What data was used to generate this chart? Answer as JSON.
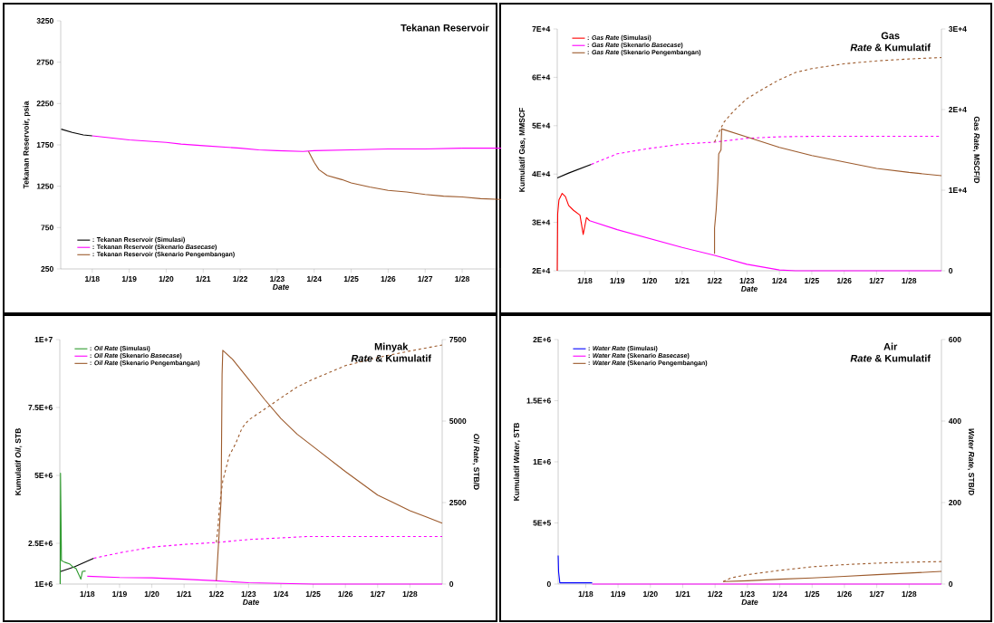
{
  "chart_data": [
    {
      "type": "line",
      "title": "Tekanan Reservoir",
      "xlabel": "*Date*",
      "ylabel": "Tekanan Reservoir, psia",
      "legend": "bottom left",
      "xlim": [
        "2017-02-24",
        "2029-01-20"
      ],
      "xticks": [
        {
          "value": "2018-01",
          "label": "1/18"
        },
        {
          "value": "2019-01",
          "label": "1/19"
        },
        {
          "value": "2020-01",
          "label": "1/20"
        },
        {
          "value": "2021-01",
          "label": "1/21"
        },
        {
          "value": "2022-01",
          "label": "1/22"
        },
        {
          "value": "2023-01",
          "label": "1/23"
        },
        {
          "value": "2024-01",
          "label": "1/24"
        },
        {
          "value": "2025-01",
          "label": "1/25"
        },
        {
          "value": "2026-01",
          "label": "1/26"
        },
        {
          "value": "2027-01",
          "label": "1/27"
        },
        {
          "value": "2028-01",
          "label": "1/28"
        }
      ],
      "ylim": [
        250,
        3250
      ],
      "yticks": [
        250,
        750,
        1250,
        1750,
        2250,
        2750,
        3250
      ],
      "series": [
        {
          "name": ": Tekanan Reservoir (Simulasi)",
          "color": "#000000",
          "line_style": "solid",
          "x": [
            "2017-03-01",
            "2017-06-18",
            "2017-10-05",
            "2018-01-01"
          ],
          "values": [
            1940,
            1900,
            1870,
            1860
          ]
        },
        {
          "name": ": Tekanan Reservoir (Skenario *Basecase*)",
          "color": "#ff00ff",
          "line_style": "solid",
          "x": [
            "2018-01-01",
            "2019-01-01",
            "2020-01-01",
            "2020-05-27",
            "2021-01-01",
            "2022-01-01",
            "2022-07-02",
            "2023-01-01",
            "2023-09-13",
            "2024-01-01",
            "2025-01-01",
            "2026-01-01",
            "2027-01-01",
            "2028-01-01",
            "2029-01-20"
          ],
          "values": [
            1860,
            1810,
            1780,
            1760,
            1740,
            1710,
            1690,
            1680,
            1670,
            1680,
            1690,
            1700,
            1700,
            1710,
            1710
          ]
        },
        {
          "name": ": Tekanan Reservoir (Skenario Pengembangan)",
          "color": "#9c5a2c",
          "line_style": "solid",
          "x": [
            "2023-11-06",
            "2024-01-01",
            "2024-02-17",
            "2024-05-08",
            "2024-10-01",
            "2025-01-01",
            "2025-07-02",
            "2026-01-01",
            "2026-07-02",
            "2027-01-01",
            "2027-07-02",
            "2028-01-01",
            "2028-07-02",
            "2029-01-20"
          ],
          "values": [
            1670,
            1540,
            1450,
            1380,
            1330,
            1290,
            1240,
            1200,
            1180,
            1150,
            1130,
            1120,
            1100,
            1090
          ]
        }
      ]
    },
    {
      "type": "line",
      "title": "Gas",
      "subtitle": "*Rate* & Kumulatif",
      "xlabel": "*Date*",
      "ylabel": "Kumulatif Gas, MMSCF",
      "y2label": "Gas *Rate*, MSCF/D",
      "legend": "top left",
      "xlim": [
        "2017-02-24",
        "2029-01-01"
      ],
      "xticks": [
        {
          "value": "2018-01",
          "label": "1/18"
        },
        {
          "value": "2019-01",
          "label": "1/19"
        },
        {
          "value": "2020-01",
          "label": "1/20"
        },
        {
          "value": "2021-01",
          "label": "1/21"
        },
        {
          "value": "2022-01",
          "label": "1/22"
        },
        {
          "value": "2023-01",
          "label": "1/23"
        },
        {
          "value": "2024-01",
          "label": "1/24"
        },
        {
          "value": "2025-01",
          "label": "1/25"
        },
        {
          "value": "2026-01",
          "label": "1/26"
        },
        {
          "value": "2027-01",
          "label": "1/27"
        },
        {
          "value": "2028-01",
          "label": "1/28"
        }
      ],
      "ylim": [
        20000,
        70000
      ],
      "yticks": [
        {
          "value": 20000,
          "label": "2E+4"
        },
        {
          "value": 30000,
          "label": "3E+4"
        },
        {
          "value": 40000,
          "label": "4E+4"
        },
        {
          "value": 50000,
          "label": "5E+4"
        },
        {
          "value": 60000,
          "label": "6E+4"
        },
        {
          "value": 70000,
          "label": "7E+4"
        }
      ],
      "y2lim": [
        0,
        30000
      ],
      "y2ticks": [
        0,
        {
          "value": 10000,
          "label": "1E+4"
        },
        {
          "value": 20000,
          "label": "2E+4"
        },
        {
          "value": 30000,
          "label": "3E+4"
        }
      ],
      "series": [
        {
          "name": ": *Gas Rate* (Simulasi)",
          "color": "#ff0000",
          "line_style": "solid",
          "axis": "y2",
          "x": [
            "2017-02-24",
            "2017-03-01",
            "2017-03-15",
            "2017-04-20",
            "2017-05-27",
            "2017-07-02",
            "2017-08-26",
            "2017-11-07",
            "2017-12-13",
            "2018-01-19",
            "2018-02-24"
          ],
          "values": [
            0,
            7100,
            8800,
            9600,
            9200,
            8100,
            7500,
            6900,
            4500,
            6600,
            6200
          ]
        },
        {
          "name": ": *Gas Rate* (Skenario *Basecase*)",
          "color": "#ff00ff",
          "line_style": "solid",
          "axis": "y2",
          "x": [
            "2018-02-24",
            "2019-01-01",
            "2020-01-01",
            "2021-01-01",
            "2022-01-01",
            "2023-01-01",
            "2024-01-01",
            "2024-07-02",
            "2029-01-01"
          ],
          "values": [
            6200,
            5100,
            4000,
            2900,
            1900,
            800,
            100,
            0,
            0
          ]
        },
        {
          "name": ": *Gas Rate* (Skenario Pengembangan)",
          "color": "#9c5a2c",
          "line_style": "solid",
          "axis": "y2",
          "x": [
            "2022-01-01",
            "2022-01-01",
            "2022-01-19",
            "2022-02-06",
            "2022-02-17",
            "2022-03-15",
            "2022-03-22",
            "2023-01-01",
            "2024-01-01",
            "2025-01-01",
            "2026-01-01",
            "2027-01-01",
            "2028-01-01",
            "2029-01-01"
          ],
          "values": [
            2100,
            5300,
            7500,
            11000,
            14500,
            15000,
            17600,
            16600,
            15300,
            14300,
            13500,
            12700,
            12200,
            11800
          ]
        },
        {
          "color": "#000000",
          "line_style": "solid",
          "x": [
            "2017-02-24",
            "2017-07-02",
            "2018-03-15"
          ],
          "values": [
            39200,
            40200,
            42000
          ]
        },
        {
          "color": "#ff00ff",
          "line_style": "dashed",
          "x": [
            "2018-03-15",
            "2019-01-01",
            "2020-01-01",
            "2021-01-01",
            "2022-01-01",
            "2023-01-01",
            "2024-01-01",
            "2025-01-01",
            "2029-01-01"
          ],
          "values": [
            42000,
            44200,
            45300,
            46200,
            46600,
            47400,
            47700,
            47800,
            47800
          ]
        },
        {
          "color": "#9c5a2c",
          "line_style": "dashed",
          "x": [
            "2022-01-01",
            "2022-02-06",
            "2022-04-20",
            "2022-08-08",
            "2023-01-01",
            "2023-07-02",
            "2024-01-01",
            "2024-07-02",
            "2025-01-01",
            "2025-09-13",
            "2026-01-01",
            "2027-01-01",
            "2028-01-01",
            "2029-01-01"
          ],
          "values": [
            46600,
            48200,
            50800,
            53100,
            55600,
            57600,
            59500,
            61000,
            61800,
            62500,
            62800,
            63400,
            63800,
            64100
          ]
        }
      ]
    },
    {
      "type": "line",
      "title": "Minyak",
      "subtitle": "*Rate* & Kumulatif",
      "xlabel": "*Date*",
      "ylabel": "Kumulatif *Oil*, STB",
      "y2label": "*Oil Rate*, STB/D",
      "legend": "top left",
      "xlim": [
        "2017-02-24",
        "2029-01-01"
      ],
      "xticks": [
        {
          "value": "2018-01",
          "label": "1/18"
        },
        {
          "value": "2019-01",
          "label": "1/19"
        },
        {
          "value": "2020-01",
          "label": "1/20"
        },
        {
          "value": "2021-01",
          "label": "1/21"
        },
        {
          "value": "2022-01",
          "label": "1/22"
        },
        {
          "value": "2023-01",
          "label": "1/23"
        },
        {
          "value": "2024-01",
          "label": "1/24"
        },
        {
          "value": "2025-01",
          "label": "1/25"
        },
        {
          "value": "2026-01",
          "label": "1/26"
        },
        {
          "value": "2027-01",
          "label": "1/27"
        },
        {
          "value": "2028-01",
          "label": "1/28"
        }
      ],
      "ylim": [
        1000000,
        10000000
      ],
      "yticks": [
        {
          "value": 1000000,
          "label": "1E+6"
        },
        {
          "value": 2500000,
          "label": "2.5E+6"
        },
        {
          "value": 5000000,
          "label": "5E+6"
        },
        {
          "value": 7500000,
          "label": "7.5E+6"
        },
        {
          "value": 10000000,
          "label": "1E+7"
        }
      ],
      "y2lim": [
        0,
        7500
      ],
      "y2ticks": [
        0,
        2500,
        5000,
        7500
      ],
      "series": [
        {
          "name": ": *Oil Rate* (Simulasi)",
          "color": "#2e9a2e",
          "line_style": "solid",
          "axis": "y2",
          "x": [
            "2017-03-01",
            "2017-03-04",
            "2017-03-15",
            "2017-04-20",
            "2017-06-14",
            "2017-07-20",
            "2017-08-26",
            "2017-10-20",
            "2017-11-07",
            "2017-12-13"
          ],
          "values": [
            0,
            3400,
            720,
            670,
            620,
            530,
            480,
            150,
            390,
            400
          ]
        },
        {
          "name": ": *Oil Rate* (Skenario *Basecase*)",
          "color": "#ff00ff",
          "line_style": "solid",
          "axis": "y2",
          "x": [
            "2018-01-01",
            "2019-01-01",
            "2020-01-01",
            "2021-01-01",
            "2022-01-01",
            "2023-01-01",
            "2024-01-01",
            "2025-01-01",
            "2029-01-01"
          ],
          "values": [
            240,
            200,
            190,
            150,
            100,
            40,
            20,
            0,
            0
          ]
        },
        {
          "name": ": *Oil Rate* (Skenario Pengembangan)",
          "color": "#9c5a2c",
          "line_style": "solid",
          "axis": "y2",
          "x": [
            "2022-01-01",
            "2022-02-24",
            "2022-03-07",
            "2022-03-15",
            "2022-07-02",
            "2023-01-01",
            "2023-07-02",
            "2024-01-01",
            "2024-07-02",
            "2025-01-01",
            "2026-01-01",
            "2027-01-01",
            "2027-07-02",
            "2028-01-01",
            "2028-07-02",
            "2029-01-01"
          ],
          "values": [
            100,
            2590,
            6430,
            7170,
            6900,
            6280,
            5660,
            5080,
            4600,
            4220,
            3450,
            2730,
            2490,
            2250,
            2060,
            1870
          ]
        },
        {
          "color": "#000000",
          "line_style": "solid",
          "x": [
            "2017-03-01",
            "2017-08-08",
            "2018-03-15"
          ],
          "values": [
            1460000,
            1630000,
            1950000
          ]
        },
        {
          "color": "#ff00ff",
          "line_style": "dashed",
          "x": [
            "2018-03-15",
            "2019-01-01",
            "2020-01-01",
            "2021-01-01",
            "2022-01-01",
            "2023-01-01",
            "2024-01-01",
            "2024-10-20",
            "2029-01-01"
          ],
          "values": [
            1950000,
            2150000,
            2360000,
            2460000,
            2530000,
            2640000,
            2700000,
            2750000,
            2750000
          ]
        },
        {
          "color": "#9c5a2c",
          "line_style": "dashed",
          "x": [
            "2022-01-01",
            "2022-01-19",
            "2022-02-06",
            "2022-03-15",
            "2022-05-27",
            "2022-08-08",
            "2022-10-20",
            "2023-01-01",
            "2023-07-02",
            "2024-01-01",
            "2024-07-02",
            "2025-01-01",
            "2026-01-01",
            "2027-01-01",
            "2028-01-01",
            "2029-01-01"
          ],
          "values": [
            2530000,
            3070000,
            3880000,
            4800000,
            5720000,
            6180000,
            6750000,
            7040000,
            7440000,
            7850000,
            8250000,
            8540000,
            9040000,
            9340000,
            9580000,
            9800000
          ]
        }
      ]
    },
    {
      "type": "line",
      "title": "Air",
      "subtitle": "*Rate* & Kumulatif",
      "xlabel": "*Date*",
      "ylabel": "Kumulatif *Water*, STB",
      "y2label": "*Water Rate*, STB/D",
      "legend": "top left",
      "xlim": [
        "2017-02-24",
        "2029-01-01"
      ],
      "xticks": [
        {
          "value": "2018-01",
          "label": "1/18"
        },
        {
          "value": "2019-01",
          "label": "1/19"
        },
        {
          "value": "2020-01",
          "label": "1/20"
        },
        {
          "value": "2021-01",
          "label": "1/21"
        },
        {
          "value": "2022-01",
          "label": "1/22"
        },
        {
          "value": "2023-01",
          "label": "1/23"
        },
        {
          "value": "2024-01",
          "label": "1/24"
        },
        {
          "value": "2025-01",
          "label": "1/25"
        },
        {
          "value": "2026-01",
          "label": "1/26"
        },
        {
          "value": "2027-01",
          "label": "1/27"
        },
        {
          "value": "2028-01",
          "label": "1/28"
        }
      ],
      "ylim": [
        0,
        2000000
      ],
      "yticks": [
        0,
        {
          "value": 500000,
          "label": "5E+5"
        },
        {
          "value": 1000000,
          "label": "1E+6"
        },
        {
          "value": 1500000,
          "label": "1.5E+6"
        },
        {
          "value": 2000000,
          "label": "2E+6"
        }
      ],
      "y2lim": [
        0,
        600
      ],
      "y2ticks": [
        0,
        200,
        400,
        600
      ],
      "series": [
        {
          "name": ": *Water Rate* (Simulasi)",
          "color": "#0000ff",
          "line_style": "solid",
          "axis": "y2",
          "x": [
            "2017-02-24",
            "2017-03-01",
            "2017-03-15",
            "2018-03-15"
          ],
          "values": [
            70,
            30,
            3,
            3
          ]
        },
        {
          "name": ": *Water Rate* (Skenario *Basecase*)",
          "color": "#ff00ff",
          "line_style": "solid",
          "axis": "y2",
          "x": [
            "2018-03-15",
            "2029-01-01"
          ],
          "values": [
            0,
            0
          ]
        },
        {
          "name": ": *Water Rate* (Skenario Pengembangan)",
          "color": "#9c5a2c",
          "line_style": "solid",
          "axis": "y2",
          "x": [
            "2022-04-02",
            "2023-01-01",
            "2024-01-01",
            "2025-01-01",
            "2026-01-01",
            "2027-01-01",
            "2028-01-01",
            "2029-01-01"
          ],
          "values": [
            6,
            8,
            12,
            15,
            19,
            23,
            27,
            31
          ]
        },
        {
          "color": "#9c5a2c",
          "line_style": "dashed",
          "x": [
            "2022-04-02",
            "2022-07-02",
            "2023-01-01",
            "2024-01-01",
            "2025-01-01",
            "2026-01-01",
            "2027-01-01",
            "2028-01-01",
            "2029-01-01"
          ],
          "values": [
            20000,
            51000,
            77000,
            112000,
            141000,
            159000,
            171000,
            179000,
            184000
          ]
        }
      ]
    }
  ]
}
